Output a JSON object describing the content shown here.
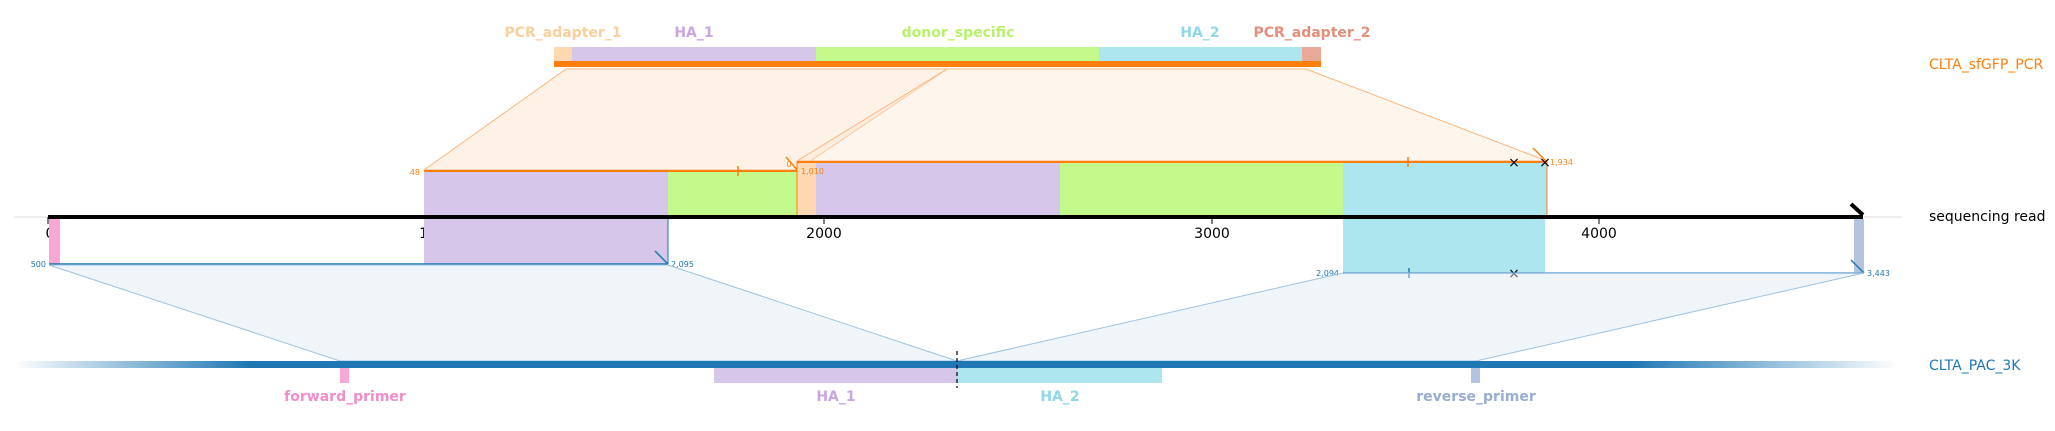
{
  "top_construct": {
    "name": "CLTA_sfGFP_PCR",
    "color": "#ff7f0e",
    "features": [
      {
        "name": "PCR_adapter_1",
        "color": "#fdd8b0",
        "text_color": "#f9cf9c"
      },
      {
        "name": "HA_1",
        "color": "#d6c6ea",
        "text_color": "#c8a6e0"
      },
      {
        "name": "donor_specific",
        "color": "#c4f98c",
        "text_color": "#b7f26a"
      },
      {
        "name": "HA_2",
        "color": "#ade6ee",
        "text_color": "#8ed8e8"
      },
      {
        "name": "PCR_adapter_2",
        "color": "#eaa898",
        "text_color": "#e48f7a"
      }
    ]
  },
  "read": {
    "name": "sequencing read",
    "axis_ticks": [
      "0",
      "1000",
      "2000",
      "3000",
      "4000"
    ],
    "top_alignment_labels": {
      "a_start": "48",
      "a_end": "0",
      "b_start": "1,010",
      "b_end": "1,934"
    },
    "bottom_alignment_labels": {
      "a_start": "500",
      "a_end": "2,095",
      "b_start": "2,094",
      "b_end": "3,443"
    }
  },
  "bottom_construct": {
    "name": "CLTA_PAC_3K",
    "color": "#1f77b4",
    "features": [
      {
        "name": "forward_primer",
        "color": "#f7a8d6",
        "text_color": "#f08ccb"
      },
      {
        "name": "HA_1",
        "color": "#d6c6ea",
        "text_color": "#c8a6e0"
      },
      {
        "name": "HA_2",
        "color": "#ade6ee",
        "text_color": "#8ed8e8"
      },
      {
        "name": "reverse_primer",
        "color": "#b4c4de",
        "text_color": "#99acd2"
      }
    ]
  }
}
